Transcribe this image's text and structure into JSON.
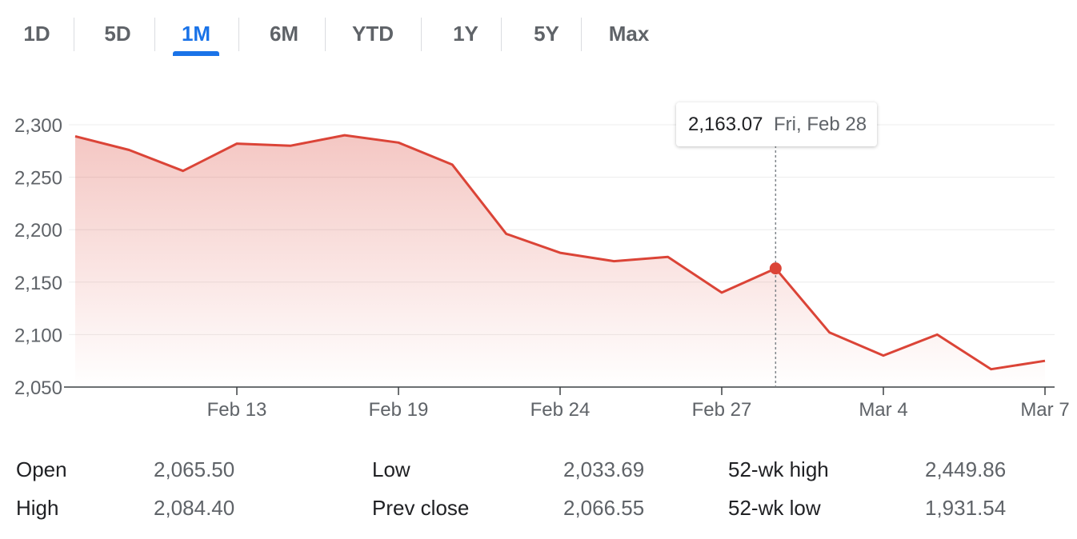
{
  "tabs": [
    {
      "label": "1D"
    },
    {
      "label": "5D"
    },
    {
      "label": "1M"
    },
    {
      "label": "6M"
    },
    {
      "label": "YTD"
    },
    {
      "label": "1Y"
    },
    {
      "label": "5Y"
    },
    {
      "label": "Max"
    }
  ],
  "active_tab": "1M",
  "tooltip": {
    "value": "2,163.07",
    "date": "Fri, Feb 28"
  },
  "stats": {
    "open_label": "Open",
    "open_value": "2,065.50",
    "high_label": "High",
    "high_value": "2,084.40",
    "low_label": "Low",
    "low_value": "2,033.69",
    "prev_close_label": "Prev close",
    "prev_close_value": "2,066.55",
    "wk52_high_label": "52-wk high",
    "wk52_high_value": "2,449.86",
    "wk52_low_label": "52-wk low",
    "wk52_low_value": "1,931.54"
  },
  "colors": {
    "line": "#db4437",
    "accent": "#1a73e8"
  },
  "chart_data": {
    "type": "area",
    "title": "",
    "xlabel": "",
    "ylabel": "",
    "x_ticks": [
      "Feb 13",
      "Feb 19",
      "Feb 24",
      "Feb 27",
      "Mar 4",
      "Mar 7"
    ],
    "y_ticks": [
      "2,300",
      "2,250",
      "2,200",
      "2,150",
      "2,100",
      "2,050"
    ],
    "ylim": [
      2050,
      2300
    ],
    "grid": true,
    "series": [
      {
        "x": [
          "Feb 10",
          "Feb 11",
          "Feb 12",
          "Feb 13",
          "Feb 14",
          "Feb 18",
          "Feb 19",
          "Feb 20",
          "Feb 21",
          "Feb 24",
          "Feb 25",
          "Feb 26",
          "Feb 27",
          "Feb 28",
          "Mar 3",
          "Mar 4",
          "Mar 5",
          "Mar 6",
          "Mar 7"
        ],
        "values": [
          2289,
          2276,
          2256,
          2282,
          2280,
          2290,
          2283,
          2262,
          2196,
          2178,
          2170,
          2174,
          2140,
          2163.07,
          2102,
          2080,
          2100,
          2067,
          2075
        ]
      }
    ],
    "highlight": {
      "x": "Feb 28",
      "value": 2163.07
    }
  }
}
